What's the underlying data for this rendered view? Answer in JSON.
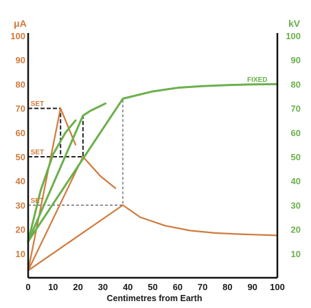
{
  "chart_data": {
    "type": "line",
    "xlabel": "Centimetres from Earth",
    "y_left_unit": "μA",
    "y_right_unit": "kV",
    "xlim": [
      0,
      100
    ],
    "ylim_left": [
      0,
      100
    ],
    "ylim_right": [
      0,
      100
    ],
    "x_ticks": [
      "0",
      "10",
      "20",
      "30",
      "40",
      "50",
      "60",
      "70",
      "80",
      "90",
      "100"
    ],
    "y_left_ticks": [
      "10",
      "20",
      "30",
      "40",
      "50",
      "60",
      "70",
      "80",
      "90",
      "100"
    ],
    "y_right_ticks": [
      "10",
      "20",
      "30",
      "40",
      "50",
      "60",
      "70",
      "80",
      "90",
      "100"
    ],
    "annotations": [
      {
        "text": "SET",
        "x": 1,
        "y": 71,
        "color": "#d07a3c"
      },
      {
        "text": "SET",
        "x": 1,
        "y": 51,
        "color": "#d07a3c"
      },
      {
        "text": "SET",
        "x": 1,
        "y": 31,
        "color": "#d07a3c"
      },
      {
        "text": "FIXED",
        "x": 96,
        "y": 81,
        "color": "#6ab04c"
      }
    ],
    "series": [
      {
        "axis": "left",
        "color": "#d07a3c",
        "x": [
          0,
          13,
          19
        ],
        "y": [
          3,
          70,
          55
        ]
      },
      {
        "axis": "left",
        "color": "#d07a3c",
        "x": [
          0,
          22,
          29,
          35
        ],
        "y": [
          3,
          50,
          42,
          37
        ]
      },
      {
        "axis": "left",
        "color": "#d07a3c",
        "x": [
          0,
          38,
          45,
          55,
          65,
          75,
          85,
          100
        ],
        "y": [
          3,
          30,
          25,
          21.5,
          19.5,
          18.5,
          18,
          17.5
        ]
      },
      {
        "axis": "right",
        "color": "#6ab04c",
        "x": [
          0,
          5,
          10,
          15,
          19
        ],
        "y": [
          15,
          36,
          51,
          60,
          65
        ]
      },
      {
        "axis": "right",
        "color": "#6ab04c",
        "x": [
          0,
          22,
          25,
          31
        ],
        "y": [
          15,
          67,
          69,
          72
        ]
      },
      {
        "axis": "right",
        "color": "#6ab04c",
        "x": [
          0,
          38,
          50,
          60,
          70,
          80,
          90,
          100
        ],
        "y": [
          15,
          74,
          77,
          78.5,
          79.2,
          79.6,
          79.9,
          80
        ]
      }
    ],
    "guides": [
      {
        "x": [
          0,
          13,
          13
        ],
        "y": [
          70,
          70,
          50
        ],
        "dash": "heavy"
      },
      {
        "x": [
          0,
          22,
          22
        ],
        "y": [
          50,
          50,
          67
        ],
        "dash": "heavy"
      },
      {
        "x": [
          0,
          38,
          38
        ],
        "y": [
          30,
          30,
          74
        ],
        "dash": "light"
      }
    ],
    "grid": false,
    "legend": "none"
  }
}
